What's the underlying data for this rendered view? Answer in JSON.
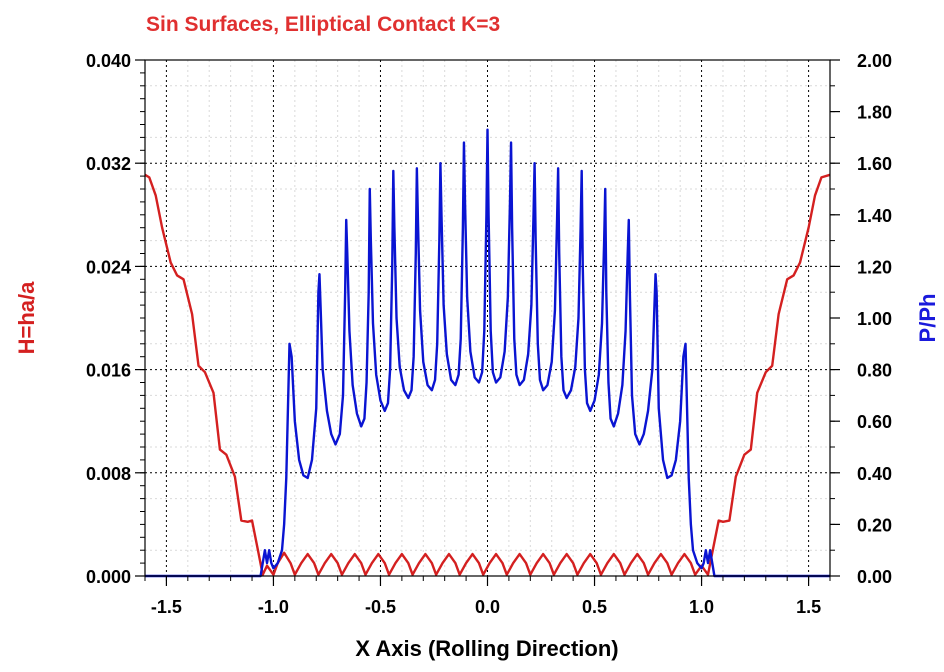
{
  "chart_data": {
    "type": "line",
    "title": "Sin Surfaces, Elliptical Contact K=3",
    "xlabel": "X Axis (Rolling Direction)",
    "ylabel_left": "H=ha/a",
    "ylabel_right": "P/Ph",
    "xlim": [
      -1.6,
      1.6
    ],
    "ylim_left": [
      0.0,
      0.04
    ],
    "ylim_right": [
      0.0,
      2.0
    ],
    "x_ticks": [
      "-1.5",
      "-1.0",
      "-0.5",
      "0.0",
      "0.5",
      "1.0",
      "1.5"
    ],
    "y_left_ticks": [
      "0.000",
      "0.008",
      "0.016",
      "0.024",
      "0.032",
      "0.040"
    ],
    "y_right_ticks": [
      "0.00",
      "0.20",
      "0.40",
      "0.60",
      "0.80",
      "1.00",
      "1.20",
      "1.40",
      "1.60",
      "1.80",
      "2.00"
    ],
    "grid": true,
    "colors": {
      "title": "#e03030",
      "gap": "#d42020",
      "pressure": "#0a14d2",
      "ylabel_right": "#1a1adc"
    },
    "series": [
      {
        "name": "H=ha/a",
        "axis": "left",
        "points": [
          [
            -1.6,
            0.0311
          ],
          [
            -1.58,
            0.0309
          ],
          [
            -1.55,
            0.0295
          ],
          [
            -1.52,
            0.027
          ],
          [
            -1.48,
            0.0243
          ],
          [
            -1.45,
            0.0233
          ],
          [
            -1.42,
            0.023
          ],
          [
            -1.38,
            0.0203
          ],
          [
            -1.35,
            0.0163
          ],
          [
            -1.32,
            0.0158
          ],
          [
            -1.28,
            0.0142
          ],
          [
            -1.25,
            0.0098
          ],
          [
            -1.22,
            0.0094
          ],
          [
            -1.18,
            0.0077
          ],
          [
            -1.15,
            0.0043
          ],
          [
            -1.12,
            0.0042
          ],
          [
            -1.1,
            0.0043
          ],
          [
            -1.07,
            0.0018
          ],
          [
            -1.05,
            0.0001
          ],
          [
            -1.03,
            0.0008
          ],
          [
            -1.0,
            0.0001
          ],
          [
            -0.98,
            0.001
          ],
          [
            -0.95,
            0.0018
          ],
          [
            -0.92,
            0.001
          ],
          [
            -0.9,
            0.0001
          ],
          [
            -0.87,
            0.001
          ],
          [
            -0.84,
            0.0017
          ],
          [
            -0.81,
            0.001
          ],
          [
            -0.79,
            0.0001
          ],
          [
            -0.76,
            0.001
          ],
          [
            -0.73,
            0.0017
          ],
          [
            -0.7,
            0.001
          ],
          [
            -0.68,
            0.0001
          ],
          [
            -0.65,
            0.001
          ],
          [
            -0.62,
            0.0017
          ],
          [
            -0.59,
            0.001
          ],
          [
            -0.57,
            0.0001
          ],
          [
            -0.54,
            0.001
          ],
          [
            -0.51,
            0.0017
          ],
          [
            -0.48,
            0.001
          ],
          [
            -0.46,
            0.0001
          ],
          [
            -0.43,
            0.001
          ],
          [
            -0.4,
            0.0017
          ],
          [
            -0.37,
            0.001
          ],
          [
            -0.35,
            0.0001
          ],
          [
            -0.32,
            0.001
          ],
          [
            -0.29,
            0.0017
          ],
          [
            -0.26,
            0.001
          ],
          [
            -0.24,
            0.0001
          ],
          [
            -0.21,
            0.001
          ],
          [
            -0.18,
            0.0017
          ],
          [
            -0.15,
            0.001
          ],
          [
            -0.13,
            0.0001
          ],
          [
            -0.1,
            0.001
          ],
          [
            -0.07,
            0.0017
          ],
          [
            -0.04,
            0.001
          ],
          [
            -0.02,
            0.0001
          ],
          [
            0.01,
            0.001
          ],
          [
            0.04,
            0.0017
          ],
          [
            0.07,
            0.001
          ],
          [
            0.09,
            0.0001
          ],
          [
            0.12,
            0.001
          ],
          [
            0.15,
            0.0017
          ],
          [
            0.18,
            0.001
          ],
          [
            0.2,
            0.0001
          ],
          [
            0.23,
            0.001
          ],
          [
            0.26,
            0.0017
          ],
          [
            0.29,
            0.001
          ],
          [
            0.31,
            0.0001
          ],
          [
            0.34,
            0.001
          ],
          [
            0.37,
            0.0017
          ],
          [
            0.4,
            0.001
          ],
          [
            0.42,
            0.0001
          ],
          [
            0.45,
            0.001
          ],
          [
            0.48,
            0.0017
          ],
          [
            0.51,
            0.001
          ],
          [
            0.53,
            0.0001
          ],
          [
            0.56,
            0.001
          ],
          [
            0.59,
            0.0017
          ],
          [
            0.62,
            0.001
          ],
          [
            0.64,
            0.0001
          ],
          [
            0.67,
            0.001
          ],
          [
            0.7,
            0.0017
          ],
          [
            0.73,
            0.001
          ],
          [
            0.75,
            0.0001
          ],
          [
            0.78,
            0.001
          ],
          [
            0.81,
            0.0017
          ],
          [
            0.84,
            0.001
          ],
          [
            0.86,
            0.0001
          ],
          [
            0.89,
            0.001
          ],
          [
            0.92,
            0.0017
          ],
          [
            0.95,
            0.001
          ],
          [
            0.97,
            0.0001
          ],
          [
            1.0,
            0.0008
          ],
          [
            1.03,
            0.0001
          ],
          [
            1.05,
            0.0018
          ],
          [
            1.08,
            0.0043
          ],
          [
            1.1,
            0.0042
          ],
          [
            1.13,
            0.0043
          ],
          [
            1.16,
            0.0077
          ],
          [
            1.2,
            0.0094
          ],
          [
            1.23,
            0.0098
          ],
          [
            1.26,
            0.0142
          ],
          [
            1.3,
            0.0158
          ],
          [
            1.33,
            0.0163
          ],
          [
            1.36,
            0.0203
          ],
          [
            1.4,
            0.023
          ],
          [
            1.43,
            0.0233
          ],
          [
            1.46,
            0.0243
          ],
          [
            1.5,
            0.027
          ],
          [
            1.53,
            0.0295
          ],
          [
            1.56,
            0.0309
          ],
          [
            1.6,
            0.0311
          ]
        ]
      },
      {
        "name": "P/Ph",
        "axis": "right",
        "points": [
          [
            -1.6,
            0.0
          ],
          [
            -1.06,
            0.0
          ],
          [
            -1.05,
            0.05
          ],
          [
            -1.04,
            0.1
          ],
          [
            -1.03,
            0.05
          ],
          [
            -1.02,
            0.1
          ],
          [
            -1.01,
            0.05
          ],
          [
            -1.0,
            0.03
          ],
          [
            -0.98,
            0.05
          ],
          [
            -0.96,
            0.1
          ],
          [
            -0.95,
            0.2
          ],
          [
            -0.94,
            0.38
          ],
          [
            -0.925,
            0.9
          ],
          [
            -0.915,
            0.85
          ],
          [
            -0.9,
            0.6
          ],
          [
            -0.88,
            0.45
          ],
          [
            -0.86,
            0.39
          ],
          [
            -0.84,
            0.38
          ],
          [
            -0.82,
            0.45
          ],
          [
            -0.8,
            0.65
          ],
          [
            -0.79,
            1.1
          ],
          [
            -0.785,
            1.17
          ],
          [
            -0.78,
            1.05
          ],
          [
            -0.77,
            0.8
          ],
          [
            -0.75,
            0.64
          ],
          [
            -0.73,
            0.55
          ],
          [
            -0.71,
            0.51
          ],
          [
            -0.69,
            0.55
          ],
          [
            -0.675,
            0.7
          ],
          [
            -0.665,
            1.1
          ],
          [
            -0.66,
            1.38
          ],
          [
            -0.655,
            1.25
          ],
          [
            -0.645,
            0.95
          ],
          [
            -0.63,
            0.74
          ],
          [
            -0.61,
            0.63
          ],
          [
            -0.59,
            0.58
          ],
          [
            -0.575,
            0.61
          ],
          [
            -0.565,
            0.75
          ],
          [
            -0.555,
            1.1
          ],
          [
            -0.55,
            1.5
          ],
          [
            -0.545,
            1.3
          ],
          [
            -0.535,
            0.98
          ],
          [
            -0.52,
            0.78
          ],
          [
            -0.5,
            0.68
          ],
          [
            -0.48,
            0.64
          ],
          [
            -0.465,
            0.67
          ],
          [
            -0.455,
            0.8
          ],
          [
            -0.445,
            1.2
          ],
          [
            -0.44,
            1.57
          ],
          [
            -0.435,
            1.35
          ],
          [
            -0.425,
            1.0
          ],
          [
            -0.41,
            0.81
          ],
          [
            -0.39,
            0.72
          ],
          [
            -0.37,
            0.69
          ],
          [
            -0.355,
            0.72
          ],
          [
            -0.345,
            0.85
          ],
          [
            -0.335,
            1.25
          ],
          [
            -0.33,
            1.58
          ],
          [
            -0.325,
            1.38
          ],
          [
            -0.315,
            1.03
          ],
          [
            -0.3,
            0.83
          ],
          [
            -0.28,
            0.74
          ],
          [
            -0.26,
            0.72
          ],
          [
            -0.245,
            0.76
          ],
          [
            -0.235,
            0.9
          ],
          [
            -0.225,
            1.3
          ],
          [
            -0.22,
            1.6
          ],
          [
            -0.215,
            1.4
          ],
          [
            -0.205,
            1.05
          ],
          [
            -0.19,
            0.86
          ],
          [
            -0.17,
            0.76
          ],
          [
            -0.15,
            0.74
          ],
          [
            -0.135,
            0.78
          ],
          [
            -0.125,
            0.92
          ],
          [
            -0.115,
            1.35
          ],
          [
            -0.11,
            1.68
          ],
          [
            -0.105,
            1.45
          ],
          [
            -0.095,
            1.08
          ],
          [
            -0.08,
            0.87
          ],
          [
            -0.06,
            0.77
          ],
          [
            -0.04,
            0.75
          ],
          [
            -0.025,
            0.79
          ],
          [
            -0.015,
            0.95
          ],
          [
            -0.005,
            1.4
          ],
          [
            0.0,
            1.73
          ],
          [
            0.005,
            1.4
          ],
          [
            0.015,
            0.95
          ],
          [
            0.025,
            0.79
          ],
          [
            0.04,
            0.75
          ],
          [
            0.06,
            0.77
          ],
          [
            0.08,
            0.87
          ],
          [
            0.095,
            1.08
          ],
          [
            0.105,
            1.45
          ],
          [
            0.11,
            1.68
          ],
          [
            0.115,
            1.35
          ],
          [
            0.125,
            0.92
          ],
          [
            0.135,
            0.78
          ],
          [
            0.15,
            0.74
          ],
          [
            0.17,
            0.76
          ],
          [
            0.19,
            0.86
          ],
          [
            0.205,
            1.05
          ],
          [
            0.215,
            1.4
          ],
          [
            0.22,
            1.6
          ],
          [
            0.225,
            1.3
          ],
          [
            0.235,
            0.9
          ],
          [
            0.245,
            0.76
          ],
          [
            0.26,
            0.72
          ],
          [
            0.28,
            0.74
          ],
          [
            0.3,
            0.83
          ],
          [
            0.315,
            1.03
          ],
          [
            0.325,
            1.38
          ],
          [
            0.33,
            1.58
          ],
          [
            0.335,
            1.25
          ],
          [
            0.345,
            0.85
          ],
          [
            0.355,
            0.72
          ],
          [
            0.37,
            0.69
          ],
          [
            0.39,
            0.72
          ],
          [
            0.41,
            0.81
          ],
          [
            0.425,
            1.0
          ],
          [
            0.435,
            1.35
          ],
          [
            0.44,
            1.57
          ],
          [
            0.445,
            1.2
          ],
          [
            0.455,
            0.8
          ],
          [
            0.465,
            0.67
          ],
          [
            0.48,
            0.64
          ],
          [
            0.5,
            0.68
          ],
          [
            0.52,
            0.78
          ],
          [
            0.535,
            0.98
          ],
          [
            0.545,
            1.3
          ],
          [
            0.55,
            1.5
          ],
          [
            0.555,
            1.1
          ],
          [
            0.565,
            0.75
          ],
          [
            0.575,
            0.61
          ],
          [
            0.59,
            0.58
          ],
          [
            0.61,
            0.63
          ],
          [
            0.63,
            0.74
          ],
          [
            0.645,
            0.95
          ],
          [
            0.655,
            1.25
          ],
          [
            0.66,
            1.38
          ],
          [
            0.665,
            1.1
          ],
          [
            0.675,
            0.7
          ],
          [
            0.69,
            0.55
          ],
          [
            0.71,
            0.51
          ],
          [
            0.73,
            0.55
          ],
          [
            0.75,
            0.64
          ],
          [
            0.77,
            0.8
          ],
          [
            0.78,
            1.05
          ],
          [
            0.785,
            1.17
          ],
          [
            0.79,
            1.1
          ],
          [
            0.8,
            0.65
          ],
          [
            0.82,
            0.45
          ],
          [
            0.84,
            0.38
          ],
          [
            0.86,
            0.39
          ],
          [
            0.88,
            0.45
          ],
          [
            0.9,
            0.6
          ],
          [
            0.915,
            0.85
          ],
          [
            0.925,
            0.9
          ],
          [
            0.94,
            0.38
          ],
          [
            0.95,
            0.2
          ],
          [
            0.96,
            0.1
          ],
          [
            0.98,
            0.05
          ],
          [
            1.0,
            0.03
          ],
          [
            1.01,
            0.05
          ],
          [
            1.02,
            0.1
          ],
          [
            1.03,
            0.05
          ],
          [
            1.04,
            0.1
          ],
          [
            1.05,
            0.05
          ],
          [
            1.06,
            0.0
          ],
          [
            1.6,
            0.0
          ]
        ]
      }
    ]
  }
}
